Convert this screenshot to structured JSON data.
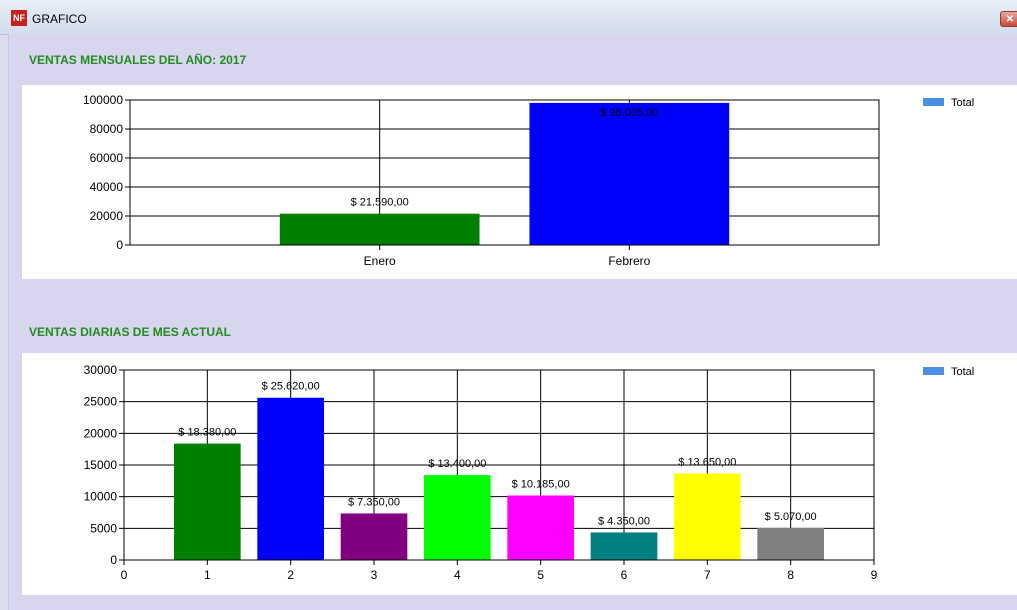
{
  "window": {
    "title": "GRAFICO",
    "icon_label": "NF",
    "close_glyph": "✕"
  },
  "monthly": {
    "heading": "VENTAS MENSUALES DEL AÑO: 2017",
    "chart_data": {
      "type": "bar",
      "categories": [
        "Enero",
        "Febrero"
      ],
      "values": [
        21590,
        98005
      ],
      "data_labels": [
        "$ 21.590,00",
        "$ 98.005,00"
      ],
      "colors": [
        "#008000",
        "#0000ff"
      ],
      "yticks": [
        0,
        20000,
        40000,
        60000,
        80000,
        100000
      ],
      "ylim": [
        0,
        100000
      ],
      "legend": "Total",
      "legend_position": "top-right",
      "grid": true
    }
  },
  "daily": {
    "heading": "VENTAS DIARIAS DE MES ACTUAL",
    "chart_data": {
      "type": "bar",
      "x": [
        1,
        2,
        3,
        4,
        5,
        6,
        7,
        8
      ],
      "values": [
        18380,
        25620,
        7350,
        13400,
        10185,
        4350,
        13650,
        5070
      ],
      "data_labels": [
        "$ 18.380,00",
        "$ 25.620,00",
        "$ 7.350,00",
        "$ 13.400,00",
        "$ 10.185,00",
        "$ 4.350,00",
        "$ 13.650,00",
        "$ 5.070,00"
      ],
      "colors": [
        "#008000",
        "#0000ff",
        "#800080",
        "#00ff00",
        "#ff00ff",
        "#008080",
        "#ffff00",
        "#808080"
      ],
      "xticks": [
        0,
        1,
        2,
        3,
        4,
        5,
        6,
        7,
        8,
        9
      ],
      "xlim": [
        0,
        9
      ],
      "yticks": [
        0,
        5000,
        10000,
        15000,
        20000,
        25000,
        30000
      ],
      "ylim": [
        0,
        30000
      ],
      "legend": "Total",
      "legend_position": "top-right",
      "grid": true
    }
  },
  "colors": {
    "legend_swatch": "#4a90e2",
    "heading": "#228b22",
    "panel_bg": "#d8d6ee"
  }
}
